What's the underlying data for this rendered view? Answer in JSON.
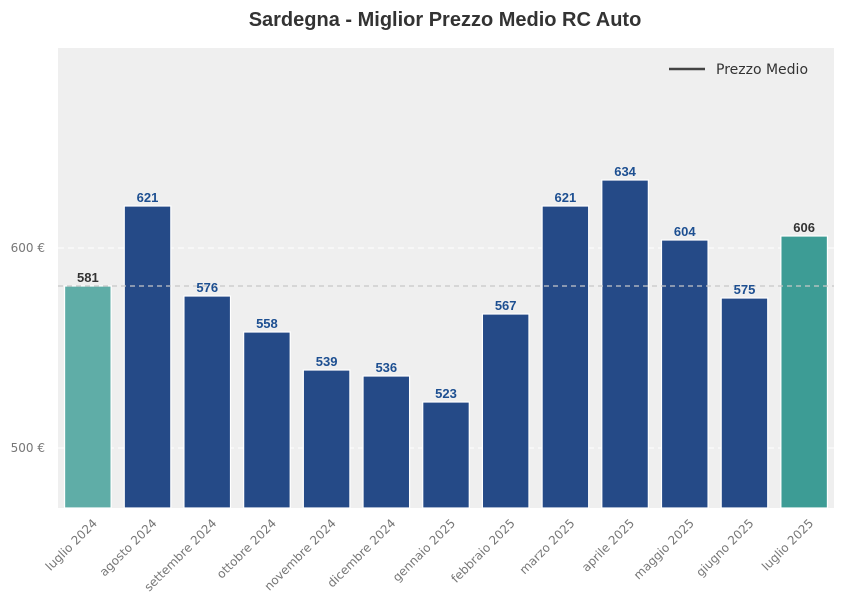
{
  "chart_data": {
    "type": "bar",
    "title": "Sardegna - Miglior Prezzo Medio RC Auto",
    "categories": [
      "luglio 2024",
      "agosto 2024",
      "settembre 2024",
      "ottobre 2024",
      "novembre 2024",
      "dicembre 2024",
      "gennaio 2025",
      "febbraio 2025",
      "marzo 2025",
      "aprile 2025",
      "maggio 2025",
      "giugno 2025",
      "luglio 2025"
    ],
    "values": [
      581,
      621,
      576,
      558,
      539,
      536,
      523,
      567,
      621,
      634,
      604,
      575,
      606
    ],
    "value_labels": [
      "581",
      "621",
      "576",
      "558",
      "539",
      "536",
      "523",
      "567",
      "621",
      "634",
      "604",
      "575",
      "606"
    ],
    "ylim": [
      470,
      700
    ],
    "yticks": [
      500,
      600
    ],
    "ytick_labels": [
      "500 €",
      "600 €"
    ],
    "average": 581,
    "legend": {
      "label": "Prezzo Medio",
      "position": "top-right"
    },
    "grid": true,
    "colors": {
      "bar": "#254a87",
      "first_bar": "#5fada7",
      "last_bar": "#3d9c95",
      "label_highlight": "#1d4f91",
      "label_edge": "#333333",
      "plot_bg": "#efefef",
      "avg_line": "#c8c8c8",
      "legend_line": "#444444"
    }
  }
}
